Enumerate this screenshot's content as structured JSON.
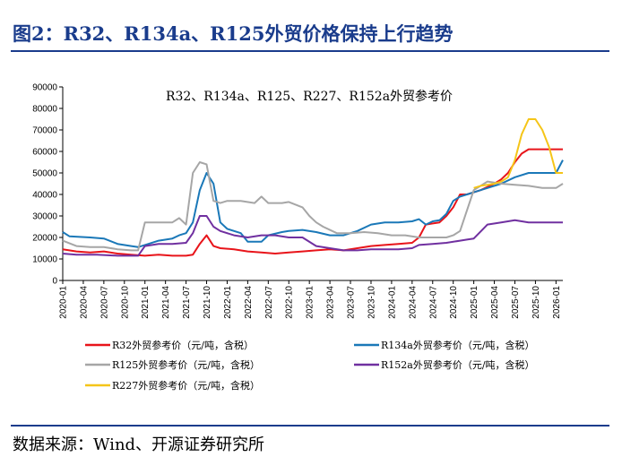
{
  "header": {
    "figure_title": "图2：R32、R134a、R125外贸价格保持上行趋势"
  },
  "footer": {
    "source": "数据来源：Wind、开源证券研究所"
  },
  "colors": {
    "accent": "#1a3c8c",
    "R32": "#e8141a",
    "R134a": "#1a78b8",
    "R125": "#a6a6a6",
    "R152a": "#7030a0",
    "R227": "#f5c518"
  },
  "chart_data": {
    "type": "line",
    "title": "R32、R134a、R125、R227、R152a外贸参考价",
    "xlabel": "",
    "ylabel": "",
    "ylim": [
      0,
      90000
    ],
    "yticks": [
      0,
      10000,
      20000,
      30000,
      40000,
      50000,
      60000,
      70000,
      80000,
      90000
    ],
    "xlim": [
      "2020-01",
      "2026-02"
    ],
    "xticks": [
      "2020-01",
      "2020-04",
      "2020-07",
      "2020-10",
      "2021-01",
      "2021-04",
      "2021-07",
      "2021-10",
      "2022-01",
      "2022-04",
      "2022-07",
      "2022-10",
      "2023-01",
      "2023-04",
      "2023-07",
      "2023-10",
      "2024-01",
      "2024-04",
      "2024-07",
      "2024-10",
      "2025-01",
      "2025-04",
      "2025-07",
      "2025-10",
      "2026-01"
    ],
    "grid": false,
    "legend_position": "bottom",
    "series": [
      {
        "name": "R32外贸参考价（元/吨，含税）",
        "color": "#e8141a",
        "points": [
          [
            "2020-01",
            14500
          ],
          [
            "2020-03",
            13500
          ],
          [
            "2020-05",
            13000
          ],
          [
            "2020-07",
            13500
          ],
          [
            "2020-09",
            12500
          ],
          [
            "2020-11",
            12000
          ],
          [
            "2021-01",
            11500
          ],
          [
            "2021-03",
            12000
          ],
          [
            "2021-05",
            11500
          ],
          [
            "2021-07",
            11500
          ],
          [
            "2021-08",
            12000
          ],
          [
            "2021-09",
            17000
          ],
          [
            "2021-10",
            21000
          ],
          [
            "2021-11",
            16000
          ],
          [
            "2021-12",
            15000
          ],
          [
            "2022-02",
            14500
          ],
          [
            "2022-04",
            13500
          ],
          [
            "2022-06",
            13000
          ],
          [
            "2022-08",
            12500
          ],
          [
            "2022-10",
            13000
          ],
          [
            "2022-12",
            13500
          ],
          [
            "2023-02",
            14000
          ],
          [
            "2023-04",
            14500
          ],
          [
            "2023-06",
            14000
          ],
          [
            "2023-08",
            15000
          ],
          [
            "2023-10",
            16000
          ],
          [
            "2023-12",
            16500
          ],
          [
            "2024-02",
            17000
          ],
          [
            "2024-04",
            17500
          ],
          [
            "2024-05",
            20000
          ],
          [
            "2024-06",
            26000
          ],
          [
            "2024-07",
            26500
          ],
          [
            "2024-08",
            27000
          ],
          [
            "2024-09",
            30000
          ],
          [
            "2024-10",
            34000
          ],
          [
            "2024-11",
            40000
          ],
          [
            "2024-12",
            40000
          ],
          [
            "2025-02",
            42000
          ],
          [
            "2025-04",
            45000
          ],
          [
            "2025-05",
            47000
          ],
          [
            "2025-06",
            50000
          ],
          [
            "2025-07",
            55000
          ],
          [
            "2025-08",
            59000
          ],
          [
            "2025-09",
            61000
          ],
          [
            "2025-11",
            61000
          ],
          [
            "2026-02",
            61000
          ]
        ]
      },
      {
        "name": "R134a外贸参考价（元/吨，含税）",
        "color": "#1a78b8",
        "points": [
          [
            "2020-01",
            22500
          ],
          [
            "2020-02",
            20500
          ],
          [
            "2020-05",
            20000
          ],
          [
            "2020-07",
            19500
          ],
          [
            "2020-09",
            17000
          ],
          [
            "2020-11",
            16000
          ],
          [
            "2020-12",
            15500
          ],
          [
            "2021-01",
            16500
          ],
          [
            "2021-03",
            18500
          ],
          [
            "2021-05",
            19500
          ],
          [
            "2021-06",
            21000
          ],
          [
            "2021-07",
            22000
          ],
          [
            "2021-08",
            27000
          ],
          [
            "2021-09",
            42000
          ],
          [
            "2021-10",
            50000
          ],
          [
            "2021-11",
            45000
          ],
          [
            "2021-12",
            27000
          ],
          [
            "2022-01",
            24000
          ],
          [
            "2022-03",
            22000
          ],
          [
            "2022-04",
            18000
          ],
          [
            "2022-06",
            18000
          ],
          [
            "2022-07",
            21000
          ],
          [
            "2022-09",
            22500
          ],
          [
            "2022-10",
            23000
          ],
          [
            "2022-12",
            23500
          ],
          [
            "2023-02",
            22500
          ],
          [
            "2023-04",
            21000
          ],
          [
            "2023-06",
            21000
          ],
          [
            "2023-08",
            23000
          ],
          [
            "2023-10",
            26000
          ],
          [
            "2023-12",
            27000
          ],
          [
            "2024-02",
            27000
          ],
          [
            "2024-04",
            27500
          ],
          [
            "2024-05",
            28500
          ],
          [
            "2024-06",
            26000
          ],
          [
            "2024-07",
            27500
          ],
          [
            "2024-08",
            28000
          ],
          [
            "2024-09",
            31000
          ],
          [
            "2024-10",
            37000
          ],
          [
            "2024-11",
            39000
          ],
          [
            "2024-12",
            40000
          ],
          [
            "2025-01",
            41000
          ],
          [
            "2025-03",
            43000
          ],
          [
            "2025-05",
            45000
          ],
          [
            "2025-07",
            48000
          ],
          [
            "2025-09",
            50000
          ],
          [
            "2025-11",
            50000
          ],
          [
            "2026-01",
            50000
          ],
          [
            "2026-02",
            56000
          ]
        ]
      },
      {
        "name": "R125外贸参考价（元/吨，含税）",
        "color": "#a6a6a6",
        "points": [
          [
            "2020-01",
            18500
          ],
          [
            "2020-03",
            16000
          ],
          [
            "2020-05",
            15500
          ],
          [
            "2020-07",
            15500
          ],
          [
            "2020-09",
            14500
          ],
          [
            "2020-11",
            14000
          ],
          [
            "2020-12",
            14000
          ],
          [
            "2021-01",
            27000
          ],
          [
            "2021-03",
            27000
          ],
          [
            "2021-05",
            27000
          ],
          [
            "2021-06",
            29000
          ],
          [
            "2021-07",
            26000
          ],
          [
            "2021-08",
            50000
          ],
          [
            "2021-09",
            55000
          ],
          [
            "2021-10",
            54000
          ],
          [
            "2021-11",
            37000
          ],
          [
            "2021-12",
            36000
          ],
          [
            "2022-01",
            37000
          ],
          [
            "2022-03",
            37000
          ],
          [
            "2022-05",
            36000
          ],
          [
            "2022-06",
            39000
          ],
          [
            "2022-07",
            36000
          ],
          [
            "2022-09",
            36000
          ],
          [
            "2022-10",
            36500
          ],
          [
            "2022-12",
            34000
          ],
          [
            "2023-01",
            30000
          ],
          [
            "2023-02",
            27000
          ],
          [
            "2023-03",
            25000
          ],
          [
            "2023-05",
            22000
          ],
          [
            "2023-07",
            22000
          ],
          [
            "2023-09",
            22500
          ],
          [
            "2023-11",
            22000
          ],
          [
            "2024-01",
            21000
          ],
          [
            "2024-03",
            21000
          ],
          [
            "2024-05",
            20000
          ],
          [
            "2024-07",
            20000
          ],
          [
            "2024-09",
            20000
          ],
          [
            "2024-10",
            21000
          ],
          [
            "2024-11",
            23000
          ],
          [
            "2025-01",
            42000
          ],
          [
            "2025-03",
            46000
          ],
          [
            "2025-05",
            45000
          ],
          [
            "2025-07",
            44500
          ],
          [
            "2025-09",
            44000
          ],
          [
            "2025-11",
            43000
          ],
          [
            "2026-01",
            43000
          ],
          [
            "2026-02",
            45000
          ]
        ]
      },
      {
        "name": "R152a外贸参考价（元/吨，含税）",
        "color": "#7030a0",
        "points": [
          [
            "2020-01",
            12500
          ],
          [
            "2020-03",
            12000
          ],
          [
            "2020-06",
            12000
          ],
          [
            "2020-09",
            11500
          ],
          [
            "2020-12",
            11500
          ],
          [
            "2021-01",
            16000
          ],
          [
            "2021-03",
            17000
          ],
          [
            "2021-05",
            17000
          ],
          [
            "2021-07",
            17500
          ],
          [
            "2021-08",
            22000
          ],
          [
            "2021-09",
            30000
          ],
          [
            "2021-10",
            30000
          ],
          [
            "2021-11",
            25000
          ],
          [
            "2021-12",
            23000
          ],
          [
            "2022-02",
            21000
          ],
          [
            "2022-04",
            20000
          ],
          [
            "2022-06",
            21000
          ],
          [
            "2022-08",
            21000
          ],
          [
            "2022-10",
            20000
          ],
          [
            "2022-12",
            20000
          ],
          [
            "2023-02",
            16000
          ],
          [
            "2023-04",
            15000
          ],
          [
            "2023-06",
            14000
          ],
          [
            "2023-08",
            14000
          ],
          [
            "2023-10",
            14500
          ],
          [
            "2023-12",
            14500
          ],
          [
            "2024-02",
            14500
          ],
          [
            "2024-04",
            15000
          ],
          [
            "2024-05",
            16500
          ],
          [
            "2024-07",
            17000
          ],
          [
            "2024-09",
            17500
          ],
          [
            "2024-11",
            18500
          ],
          [
            "2024-12",
            19000
          ],
          [
            "2025-01",
            19500
          ],
          [
            "2025-03",
            26000
          ],
          [
            "2025-05",
            27000
          ],
          [
            "2025-07",
            28000
          ],
          [
            "2025-09",
            27000
          ],
          [
            "2025-11",
            27000
          ],
          [
            "2026-02",
            27000
          ]
        ]
      },
      {
        "name": "R227外贸参考价（元/吨，含税）",
        "color": "#f5c518",
        "points": [
          [
            "2025-01",
            43000
          ],
          [
            "2025-02",
            44000
          ],
          [
            "2025-03",
            44500
          ],
          [
            "2025-04",
            45000
          ],
          [
            "2025-05",
            46000
          ],
          [
            "2025-06",
            48000
          ],
          [
            "2025-07",
            56000
          ],
          [
            "2025-08",
            68000
          ],
          [
            "2025-09",
            75000
          ],
          [
            "2025-10",
            75000
          ],
          [
            "2025-11",
            70000
          ],
          [
            "2025-12",
            62000
          ],
          [
            "2026-01",
            50000
          ],
          [
            "2026-02",
            50000
          ]
        ]
      }
    ]
  }
}
